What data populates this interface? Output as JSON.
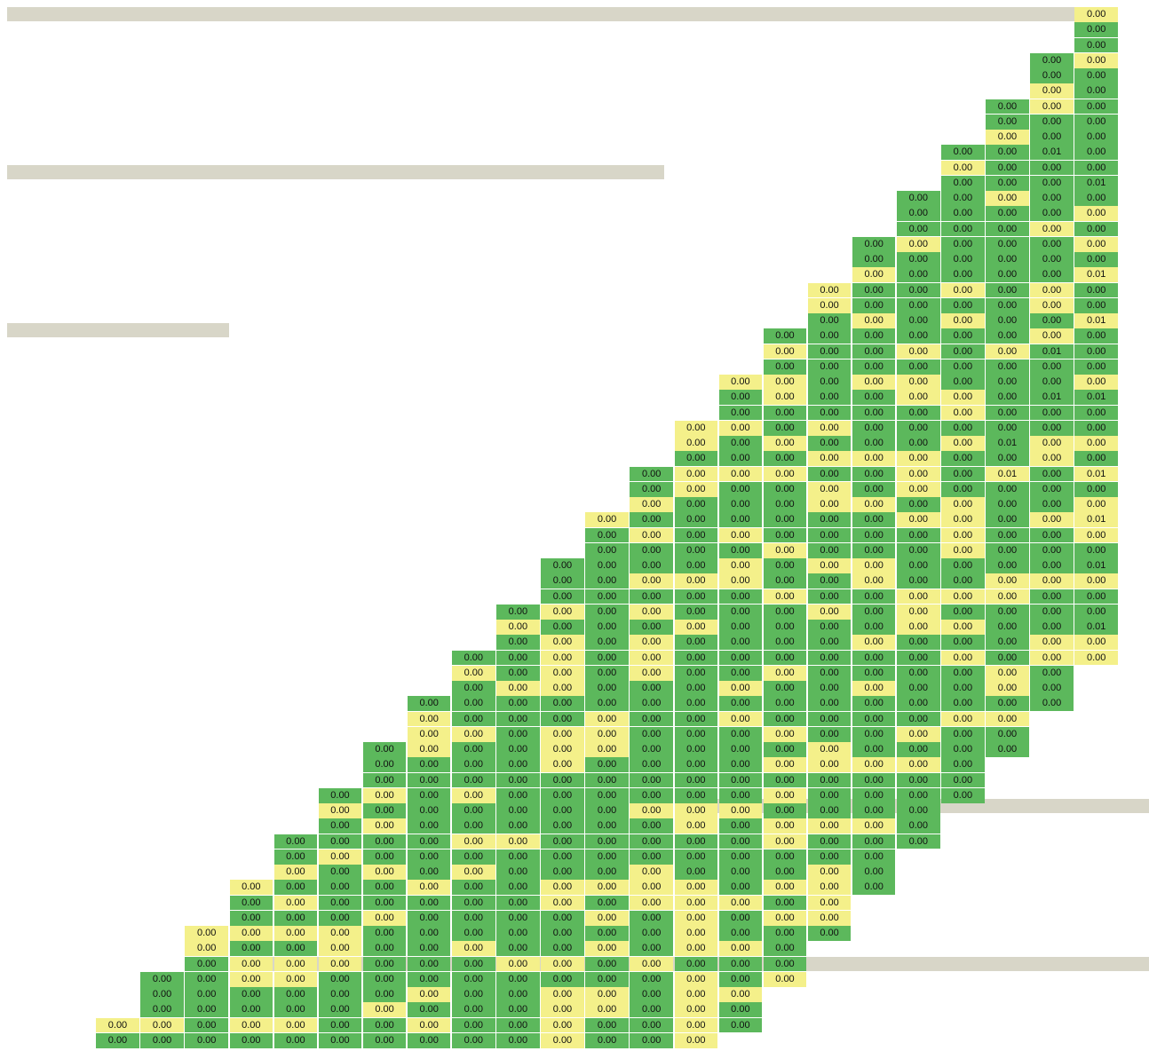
{
  "chart_data": {
    "type": "heatmap",
    "title": "",
    "rows": 68,
    "cols": 25,
    "value_text": "0.00",
    "colors": {
      "high": "#5cb85c",
      "low": "#f4f08a",
      "band": "#d8d6c8"
    },
    "pattern": "GGYGGYGGGYYGYGGYGGYGYGGYGGGYGGYGGGGYGYGGGYGGYGYGGGGYGGYGGYGYGGYGGGYGGYGYGGGGYGGYG",
    "overrides": [
      {
        "row": 9,
        "col": 23,
        "value": "0.01"
      },
      {
        "row": 11,
        "col": 24,
        "value": "0.01"
      },
      {
        "row": 17,
        "col": 24,
        "value": "0.01"
      },
      {
        "row": 20,
        "col": 24,
        "value": "0.01"
      },
      {
        "row": 22,
        "col": 23,
        "value": "0.01"
      },
      {
        "row": 25,
        "col": 23,
        "value": "0.01"
      },
      {
        "row": 25,
        "col": 24,
        "value": "0.01"
      },
      {
        "row": 28,
        "col": 22,
        "value": "0.01"
      },
      {
        "row": 30,
        "col": 22,
        "value": "0.01"
      },
      {
        "row": 30,
        "col": 24,
        "value": "0.01"
      },
      {
        "row": 33,
        "col": 24,
        "value": "0.01"
      },
      {
        "row": 36,
        "col": 24,
        "value": "0.01"
      },
      {
        "row": 40,
        "col": 24,
        "value": "0.01"
      }
    ]
  }
}
